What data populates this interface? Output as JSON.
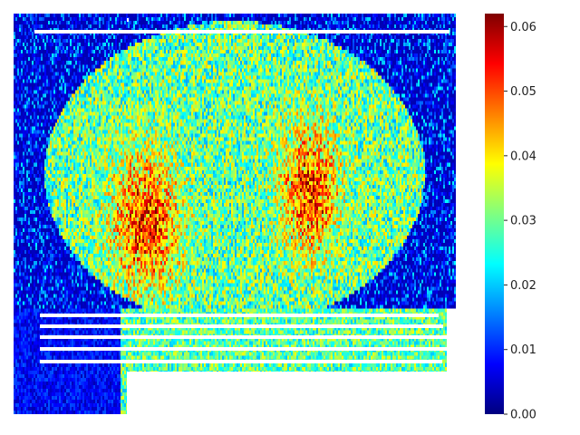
{
  "chart_data": {
    "type": "heatmap",
    "title": "",
    "xlabel": "",
    "ylabel": "",
    "colormap": "jet",
    "value_range": [
      0.0,
      0.062
    ],
    "colorbar": {
      "ticks": [
        0.0,
        0.01,
        0.02,
        0.03,
        0.04,
        0.05,
        0.06
      ],
      "tick_labels": [
        "0.00",
        "0.01",
        "0.02",
        "0.03",
        "0.04",
        "0.05",
        "0.06"
      ]
    },
    "description_values": {
      "background_level": 0.003,
      "body_level_typical": 0.032,
      "hotspot_level": 0.058
    }
  },
  "colors": {
    "jet_stops": [
      "#00007f",
      "#0000ff",
      "#0080ff",
      "#00ffff",
      "#80ff80",
      "#ffff00",
      "#ff8000",
      "#ff0000",
      "#7f0000"
    ]
  }
}
